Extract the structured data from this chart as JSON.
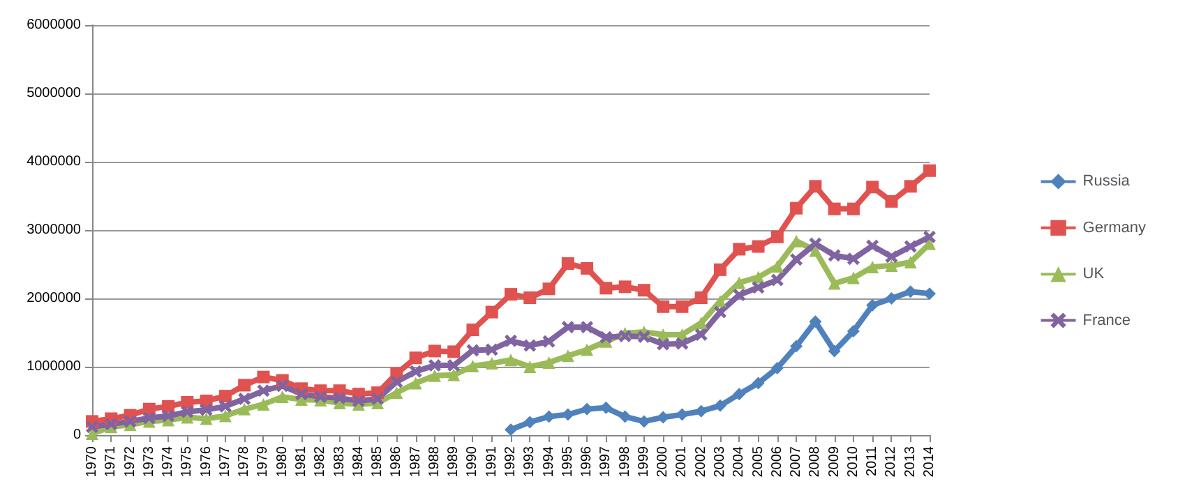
{
  "chart_data": {
    "type": "line",
    "categories": [
      "1970",
      "1971",
      "1972",
      "1973",
      "1974",
      "1975",
      "1976",
      "1977",
      "1978",
      "1979",
      "1980",
      "1981",
      "1982",
      "1983",
      "1984",
      "1985",
      "1986",
      "1987",
      "1988",
      "1989",
      "1990",
      "1991",
      "1992",
      "1993",
      "1994",
      "1995",
      "1996",
      "1997",
      "1998",
      "1999",
      "2000",
      "2001",
      "2002",
      "2003",
      "2004",
      "2005",
      "2006",
      "2007",
      "2008",
      "2009",
      "2010",
      "2011",
      "2012",
      "2013",
      "2014"
    ],
    "ylim": [
      0,
      6000000
    ],
    "yticks": [
      0,
      1000000,
      2000000,
      3000000,
      4000000,
      5000000,
      6000000
    ],
    "grid": "y",
    "legend": "right",
    "series": [
      {
        "name": "Russia",
        "color": "#4f81bd",
        "marker": "diamond",
        "values": [
          null,
          null,
          null,
          null,
          null,
          null,
          null,
          null,
          null,
          null,
          null,
          null,
          null,
          null,
          null,
          null,
          null,
          null,
          null,
          null,
          null,
          null,
          80000,
          190000,
          270000,
          300000,
          380000,
          400000,
          270000,
          200000,
          260000,
          300000,
          350000,
          430000,
          600000,
          760000,
          980000,
          1300000,
          1660000,
          1230000,
          1520000,
          1900000,
          2000000,
          2100000,
          2070000
        ]
      },
      {
        "name": "Germany",
        "color": "#e0524f",
        "marker": "square",
        "values": [
          200000,
          240000,
          290000,
          380000,
          420000,
          480000,
          500000,
          570000,
          730000,
          850000,
          800000,
          680000,
          650000,
          650000,
          600000,
          620000,
          900000,
          1130000,
          1230000,
          1220000,
          1540000,
          1800000,
          2060000,
          2010000,
          2140000,
          2510000,
          2440000,
          2150000,
          2170000,
          2120000,
          1880000,
          1880000,
          2010000,
          2420000,
          2720000,
          2760000,
          2900000,
          3320000,
          3640000,
          3310000,
          3310000,
          3630000,
          3420000,
          3640000,
          3870000
        ]
      },
      {
        "name": "UK",
        "color": "#9bbb59",
        "marker": "triangle",
        "values": [
          20000,
          120000,
          150000,
          200000,
          220000,
          260000,
          240000,
          280000,
          380000,
          450000,
          560000,
          520000,
          510000,
          470000,
          450000,
          470000,
          620000,
          760000,
          870000,
          880000,
          1010000,
          1050000,
          1100000,
          1000000,
          1060000,
          1160000,
          1250000,
          1370000,
          1490000,
          1510000,
          1470000,
          1470000,
          1640000,
          1960000,
          2230000,
          2310000,
          2470000,
          2840000,
          2700000,
          2220000,
          2300000,
          2460000,
          2480000,
          2530000,
          2800000
        ]
      },
      {
        "name": "France",
        "color": "#8064a2",
        "marker": "cross",
        "values": [
          120000,
          160000,
          200000,
          250000,
          280000,
          340000,
          370000,
          420000,
          530000,
          650000,
          720000,
          600000,
          560000,
          540000,
          500000,
          530000,
          780000,
          930000,
          1020000,
          1020000,
          1240000,
          1250000,
          1380000,
          1310000,
          1370000,
          1580000,
          1580000,
          1430000,
          1450000,
          1440000,
          1330000,
          1340000,
          1470000,
          1800000,
          2050000,
          2160000,
          2270000,
          2570000,
          2800000,
          2630000,
          2580000,
          2770000,
          2610000,
          2760000,
          2900000
        ]
      }
    ]
  }
}
